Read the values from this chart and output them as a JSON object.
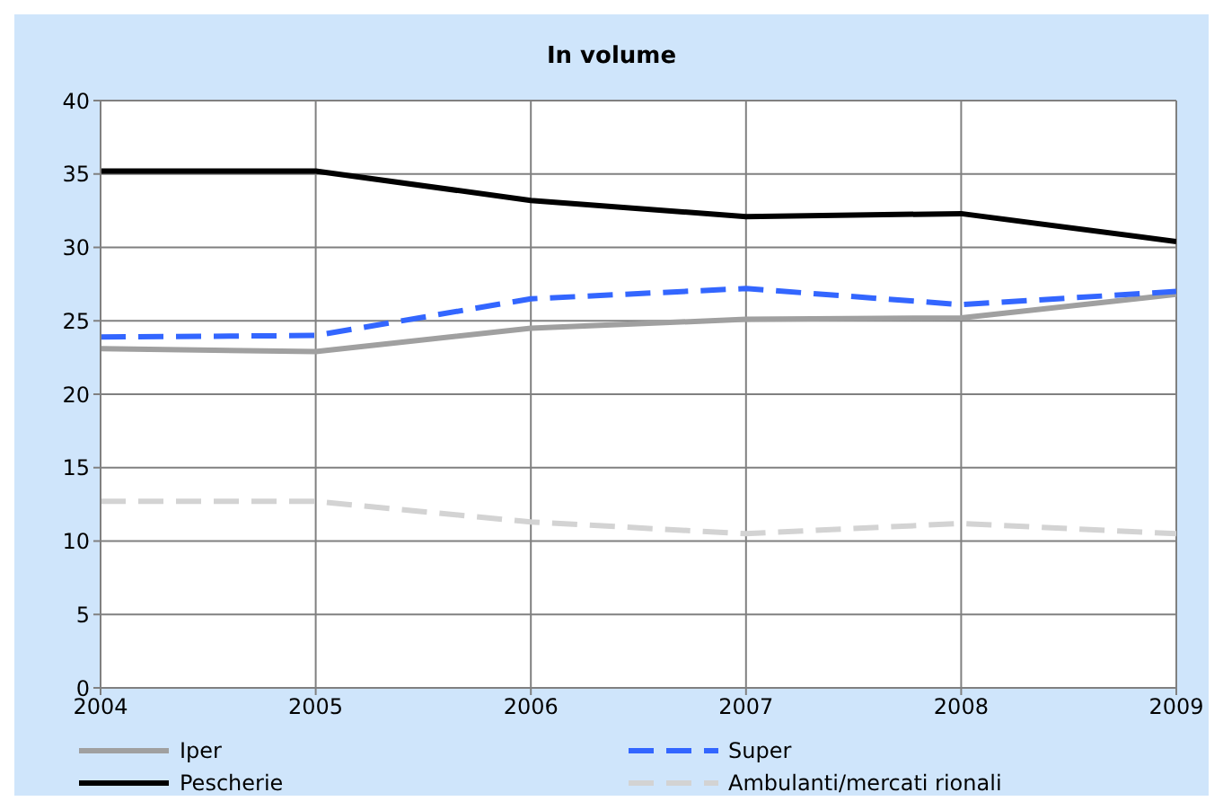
{
  "chart_data": {
    "type": "line",
    "title": "In volume",
    "x": [
      2004,
      2005,
      2006,
      2007,
      2008,
      2009
    ],
    "xlim": [
      2004,
      2009
    ],
    "xticks": [
      2004,
      2005,
      2006,
      2007,
      2008,
      2009
    ],
    "ylim": [
      0,
      40
    ],
    "yticks": [
      0,
      5,
      10,
      15,
      20,
      25,
      30,
      35,
      40
    ],
    "grid": true,
    "legend": "bottom",
    "marker": "none",
    "series": [
      {
        "name": "Iper",
        "color": "#a0a0a0",
        "line_style": "solid",
        "values": [
          23.1,
          22.9,
          24.5,
          25.1,
          25.2,
          26.8
        ]
      },
      {
        "name": "Super",
        "color": "#3366ff",
        "line_style": "dashed",
        "values": [
          23.9,
          24.0,
          26.5,
          27.2,
          26.1,
          27.0
        ]
      },
      {
        "name": "Pescherie",
        "color": "#000000",
        "line_style": "solid",
        "values": [
          35.2,
          35.2,
          33.2,
          32.1,
          32.3,
          30.4
        ]
      },
      {
        "name": "Ambulanti/mercati rionali",
        "color": "#d3d3d3",
        "line_style": "dashed",
        "values": [
          12.7,
          12.7,
          11.3,
          10.5,
          11.2,
          10.5
        ]
      }
    ]
  }
}
